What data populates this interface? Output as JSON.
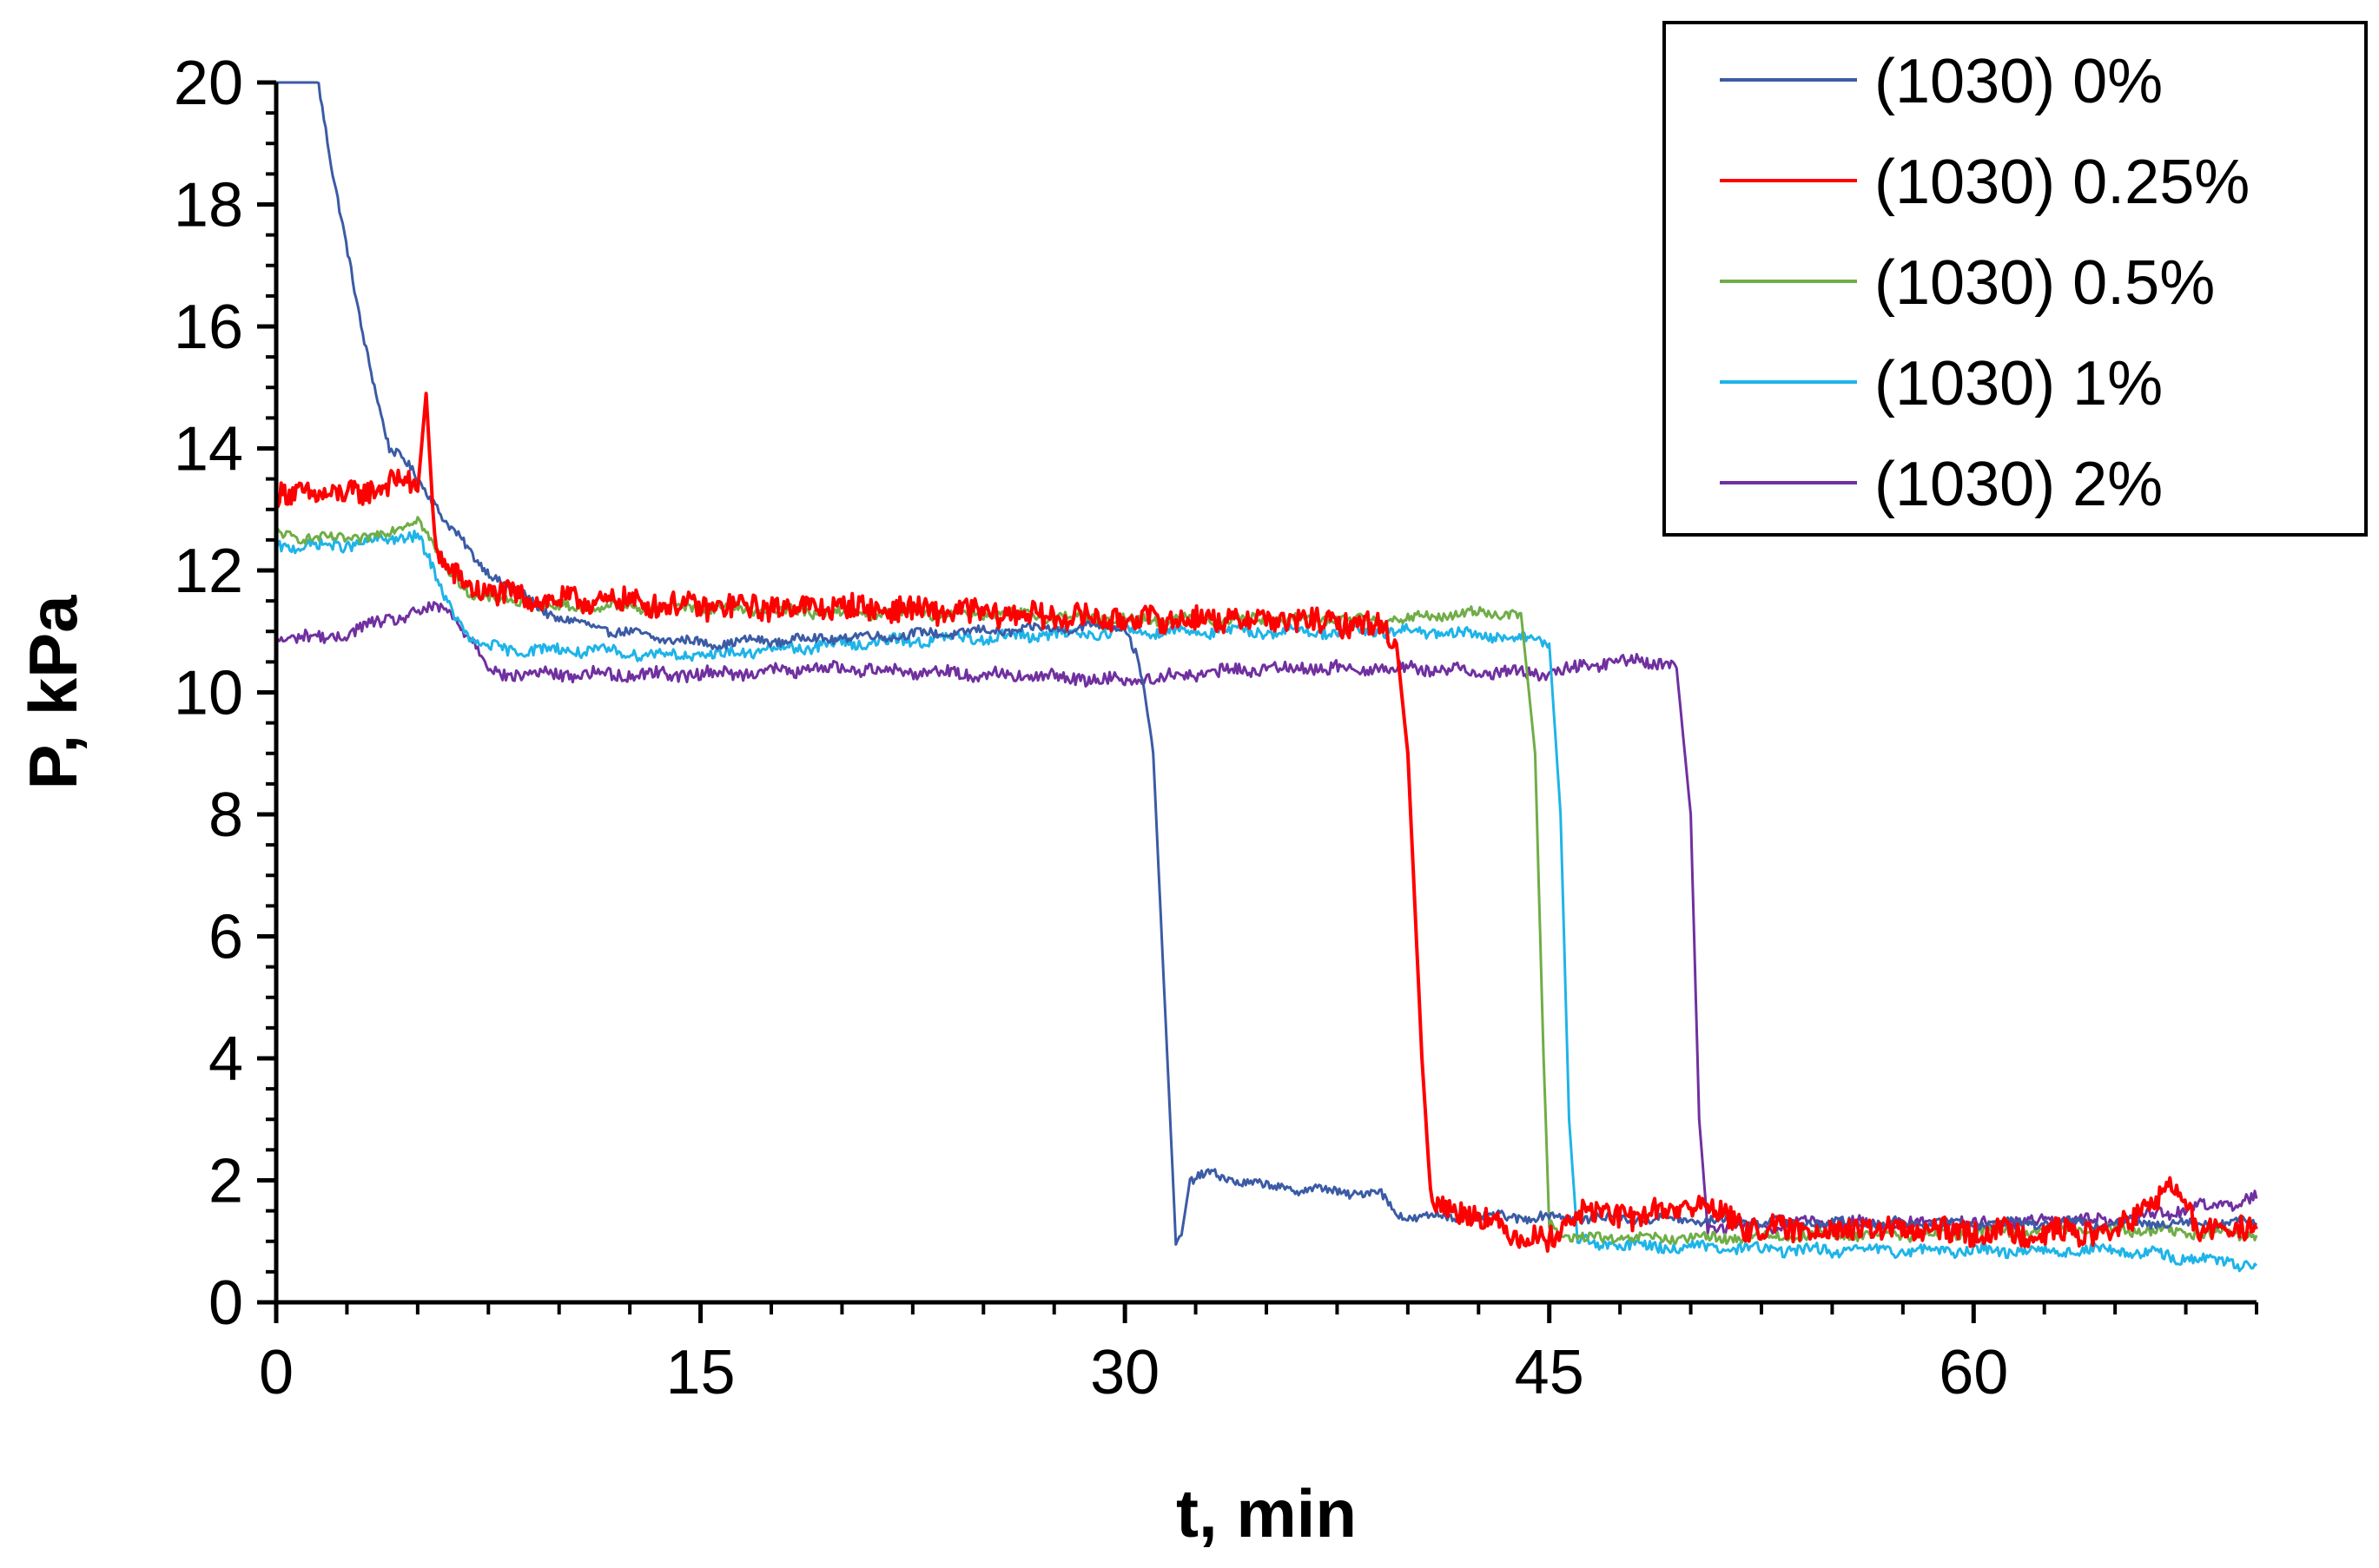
{
  "chart_data": {
    "type": "line",
    "title": "",
    "xlabel": "t, min",
    "ylabel": "P, kPa",
    "xlim": [
      0,
      70
    ],
    "ylim": [
      0,
      20
    ],
    "x_major_ticks": [
      0,
      15,
      30,
      45,
      60
    ],
    "x_minor_step": 2.5,
    "y_major_ticks": [
      0,
      2,
      4,
      6,
      8,
      10,
      12,
      14,
      16,
      18,
      20
    ],
    "y_minor_step": 0.5,
    "grid": false,
    "legend_position": "top-right",
    "series": [
      {
        "name": "(1030) 0%",
        "color": "#3B5BA5",
        "x": [
          0,
          1.5,
          2,
          3,
          4,
          4.5,
          5,
          5.5,
          6,
          6.5,
          7,
          8,
          9,
          10,
          12,
          15,
          20,
          25,
          30,
          30.5,
          31,
          31.5,
          31.8,
          32,
          32.3,
          33,
          35,
          38,
          39,
          39.5,
          40,
          42,
          45,
          50,
          55,
          60,
          65,
          70
        ],
        "y": [
          20,
          20,
          18.5,
          16,
          14,
          13.8,
          13.5,
          13.2,
          12.8,
          12.5,
          12.2,
          11.8,
          11.5,
          11.2,
          11,
          10.8,
          10.9,
          11,
          11.1,
          10.5,
          9,
          4,
          1.0,
          1.1,
          2.0,
          2.1,
          1.9,
          1.8,
          1.8,
          1.5,
          1.4,
          1.4,
          1.4,
          1.35,
          1.3,
          1.3,
          1.3,
          1.3
        ]
      },
      {
        "name": "(1030) 0.25%",
        "color": "#FF0000",
        "x": [
          0,
          1,
          2,
          3,
          4,
          4.5,
          5,
          5.3,
          5.6,
          6,
          7,
          8,
          10,
          12,
          15,
          20,
          25,
          30,
          35,
          39,
          39.6,
          40,
          40.5,
          40.8,
          41,
          42,
          43,
          44,
          45,
          46,
          48,
          50,
          51,
          52,
          55,
          60,
          65,
          67,
          68,
          70
        ],
        "y": [
          13.2,
          13.3,
          13.2,
          13.3,
          13.4,
          13.5,
          13.3,
          14.9,
          12.5,
          12,
          11.7,
          11.6,
          11.5,
          11.5,
          11.4,
          11.4,
          11.3,
          11.2,
          11.2,
          11.1,
          10.8,
          9,
          4,
          1.8,
          1.6,
          1.5,
          1.3,
          1.1,
          1.0,
          1.5,
          1.4,
          1.6,
          1.5,
          1.2,
          1.2,
          1.15,
          1.15,
          1.9,
          1.2,
          1.2
        ]
      },
      {
        "name": "(1030) 0.5%",
        "color": "#70AD47",
        "x": [
          0,
          2,
          4,
          5,
          6,
          7,
          8,
          10,
          15,
          20,
          25,
          30,
          35,
          40,
          42,
          44,
          44.5,
          44.8,
          45,
          45.5,
          46,
          50,
          55,
          58,
          60,
          65,
          70
        ],
        "y": [
          12.6,
          12.5,
          12.6,
          12.9,
          12,
          11.6,
          11.5,
          11.4,
          11.4,
          11.3,
          11.3,
          11.2,
          11.2,
          11.2,
          11.3,
          11.3,
          9,
          4,
          1.3,
          1.1,
          1.05,
          1.05,
          1.1,
          1.1,
          1.15,
          1.2,
          1.1
        ]
      },
      {
        "name": "(1030) 1%",
        "color": "#1EB4E8",
        "x": [
          0,
          2,
          4,
          5,
          6,
          7,
          8,
          10,
          15,
          20,
          25,
          30,
          35,
          40,
          44,
          45,
          45.4,
          45.7,
          46,
          47,
          50,
          55,
          60,
          65,
          68,
          70
        ],
        "y": [
          12.4,
          12.4,
          12.5,
          12.6,
          11.5,
          10.8,
          10.7,
          10.7,
          10.6,
          10.8,
          10.9,
          11.0,
          11.0,
          11.0,
          10.9,
          10.8,
          8,
          3,
          1.0,
          0.95,
          0.9,
          0.85,
          0.85,
          0.85,
          0.7,
          0.6
        ]
      },
      {
        "name": "(1030) 2%",
        "color": "#7030A0",
        "x": [
          0,
          2,
          4,
          6,
          7,
          7.5,
          8,
          10,
          15,
          20,
          25,
          30,
          35,
          40,
          45,
          47,
          49,
          49.5,
          50,
          50.3,
          50.6,
          51,
          52,
          55,
          60,
          65,
          70
        ],
        "y": [
          10.9,
          10.9,
          11.2,
          11.4,
          10.8,
          10.4,
          10.3,
          10.3,
          10.3,
          10.4,
          10.3,
          10.2,
          10.4,
          10.4,
          10.3,
          10.5,
          10.5,
          10.4,
          8,
          3,
          1.2,
          1.25,
          1.25,
          1.3,
          1.3,
          1.35,
          1.7
        ]
      }
    ]
  }
}
